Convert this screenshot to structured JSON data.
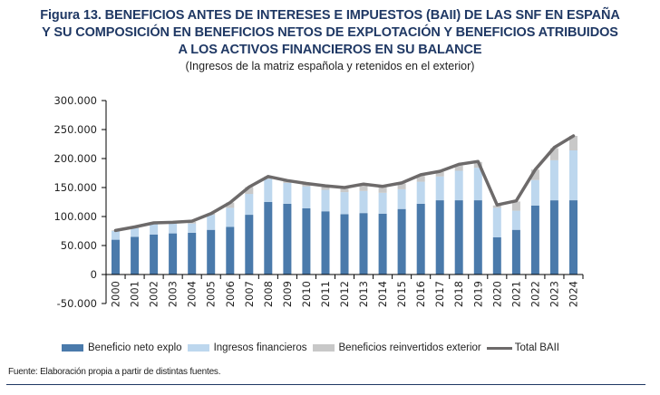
{
  "title_lines": [
    "Figura 13. BENEFICIOS ANTES DE INTERESES E IMPUESTOS (BAII) DE LAS SNF EN ESPAÑA",
    "Y SU COMPOSICIÓN EN BENEFICIOS NETOS DE EXPLOTACIÓN Y BENEFICIOS ATRIBUIDOS",
    "A LOS ACTIVOS FINANCIEROS EN SU BALANCE"
  ],
  "subtitle": "(Ingresos de la matriz española y retenidos en el exterior)",
  "source": "Fuente: Elaboración propia a partir de distintas fuentes.",
  "colors": {
    "title": "#1f3864",
    "beneficio_neto": "#4a7aab",
    "ingresos_financieros": "#bdd7ee",
    "reinvertidos": "#c8c8c8",
    "total_line": "#6d6a6a"
  },
  "chart_data": {
    "type": "bar",
    "stacked": true,
    "title": "Figura 13. BENEFICIOS ANTES DE INTERESES E IMPUESTOS (BAII) DE LAS SNF EN ESPAÑA Y SU COMPOSICIÓN EN BENEFICIOS NETOS DE EXPLOTACIÓN Y BENEFICIOS ATRIBUIDOS A LOS ACTIVOS FINANCIEROS EN SU BALANCE",
    "subtitle": "(Ingresos de la matriz española y retenidos en el exterior)",
    "xlabel": "",
    "ylabel": "",
    "categories": [
      "2000",
      "2001",
      "2002",
      "2003",
      "2004",
      "2005",
      "2006",
      "2007",
      "2008",
      "2009",
      "2010",
      "2011",
      "2012",
      "2013",
      "2014",
      "2015",
      "2016",
      "2017",
      "2018",
      "2019",
      "2020",
      "2021",
      "2022",
      "2023",
      "2024"
    ],
    "ylim": [
      -50000,
      300000
    ],
    "yticks": [
      -50000,
      0,
      50000,
      100000,
      150000,
      200000,
      250000,
      300000
    ],
    "ytick_labels": [
      "-50.000",
      "0",
      "50.000",
      "100.000",
      "150.000",
      "200.000",
      "250.000",
      "300.000"
    ],
    "grid": false,
    "legend_position": "bottom",
    "series": [
      {
        "name": "Beneficio neto explo",
        "type": "bar",
        "values": [
          60000,
          65000,
          69000,
          71000,
          72000,
          77000,
          82000,
          103000,
          125000,
          122000,
          114000,
          109000,
          104000,
          106000,
          105000,
          113000,
          122000,
          128000,
          128000,
          128000,
          64000,
          77000,
          119000,
          128000,
          128000
        ]
      },
      {
        "name": "Ingresos financieros",
        "type": "bar",
        "values": [
          15000,
          15000,
          18000,
          17000,
          16000,
          26000,
          33000,
          36000,
          40000,
          36000,
          38000,
          37000,
          38000,
          38000,
          36000,
          34000,
          38000,
          41000,
          51000,
          56000,
          51000,
          33000,
          44000,
          69000,
          86000
        ]
      },
      {
        "name": "Beneficios reinvertidos exterior",
        "type": "bar",
        "values": [
          1000,
          2000,
          2000,
          2000,
          3000,
          2000,
          9000,
          12000,
          4000,
          3000,
          4000,
          5000,
          6000,
          10000,
          10000,
          10000,
          10000,
          8000,
          9000,
          10000,
          4000,
          16000,
          18000,
          21000,
          25000
        ]
      },
      {
        "name": "Total BAII",
        "type": "line",
        "values": [
          76000,
          82000,
          89000,
          90000,
          92000,
          105000,
          124000,
          151000,
          169000,
          162000,
          157000,
          153000,
          150000,
          156000,
          152000,
          158000,
          172000,
          178000,
          190000,
          195000,
          120000,
          127000,
          181000,
          219000,
          239000
        ]
      }
    ]
  }
}
